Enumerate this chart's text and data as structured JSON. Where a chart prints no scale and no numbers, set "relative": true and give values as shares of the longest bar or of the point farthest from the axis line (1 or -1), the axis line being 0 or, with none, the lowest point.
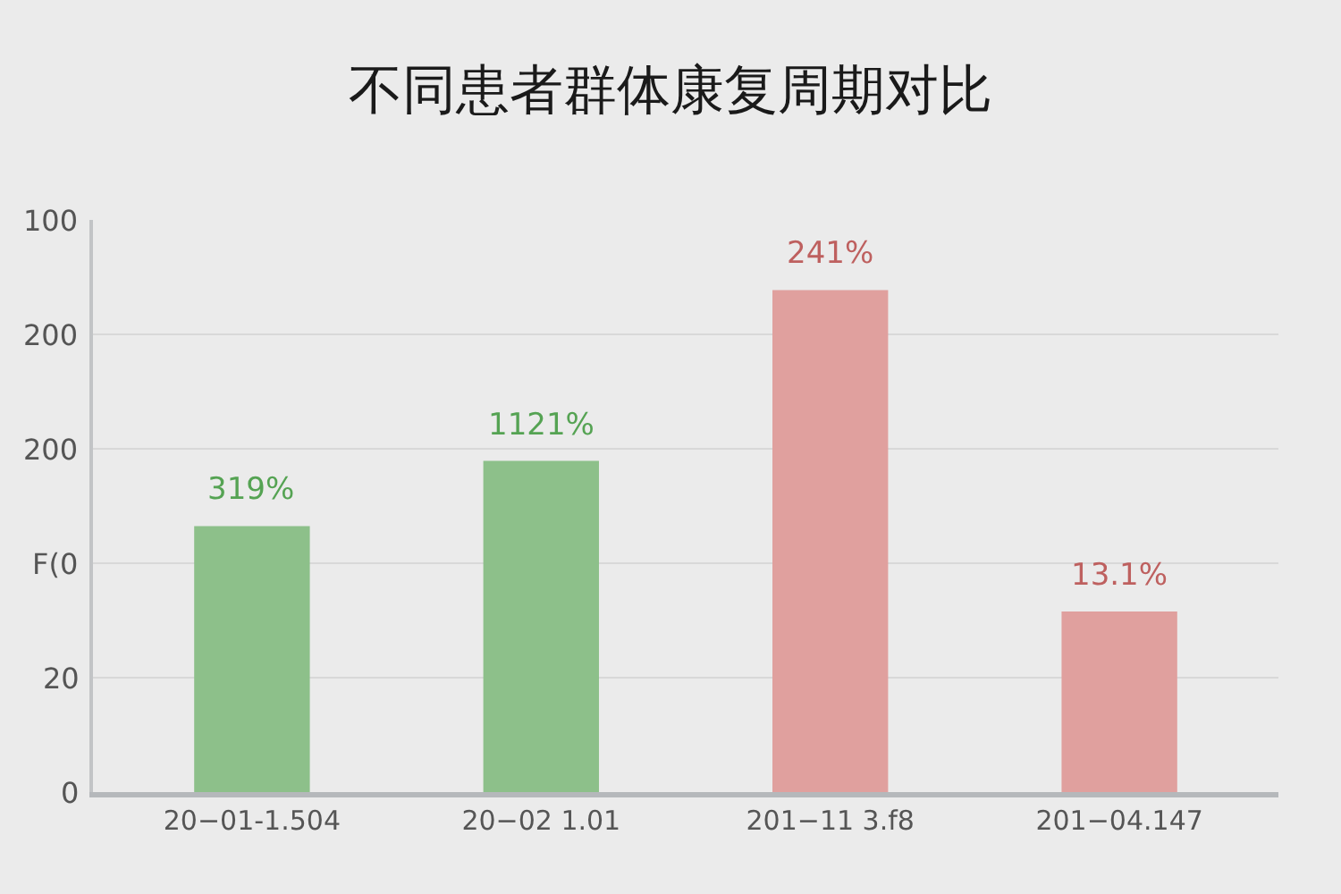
{
  "chart_data": {
    "type": "bar",
    "title": "不同患者群体康复周期对比",
    "categories": [
      "20−01-1.504",
      "20−02 1.01",
      "201−11 3.f8",
      "201−04.147"
    ],
    "values": [
      0.53,
      0.66,
      1,
      0.36
    ],
    "colors": [
      "#8dc08a",
      "#8dc08a",
      "#e0a09e",
      "#e0a09e"
    ],
    "relative": true,
    "annotations": [
      {
        "text": "319%",
        "x": "20−01-1.504",
        "y": 0.53
      },
      {
        "text": "1121%",
        "x": "20−02 1.01",
        "y": 0.66
      },
      {
        "text": "241%",
        "x": "201−11 3.f8",
        "y": 1
      },
      {
        "text": "13.1%",
        "x": "201−04.147",
        "y": 0.36
      },
      "0",
      "20",
      "F(0",
      "200",
      "200",
      "100"
    ],
    "grid": "y",
    "legend": false
  }
}
